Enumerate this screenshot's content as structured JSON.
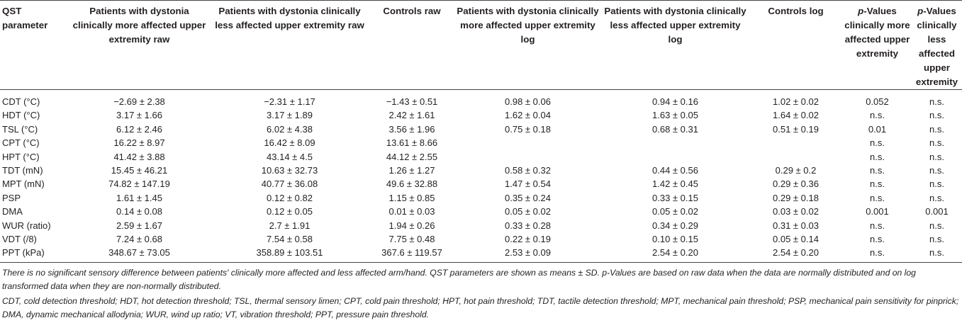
{
  "table": {
    "headers": [
      "QST parameter",
      "Patients with dystonia clinically more affected upper extremity raw",
      "Patients with dystonia clinically less affected upper extremity raw",
      "Controls raw",
      "Patients with dystonia clinically more affected upper extremity log",
      "Patients with dystonia clinically less affected upper extremity log",
      "Controls log",
      "-Values clinically more affected upper extremity",
      "-Values clinically less affected upper extremity"
    ],
    "p_prefix": "p",
    "rows": [
      [
        "CDT (°C)",
        "−2.69 ± 2.38",
        "−2.31 ± 1.17",
        "−1.43 ± 0.51",
        "0.98 ± 0.06",
        "0.94 ± 0.16",
        "1.02 ± 0.02",
        "0.052",
        "n.s."
      ],
      [
        "HDT (°C)",
        "3.17 ± 1.66",
        "3.17 ± 1.89",
        "2.42 ± 1.61",
        "1.62 ± 0.04",
        "1.63 ± 0.05",
        "1.64 ± 0.02",
        "n.s.",
        "n.s."
      ],
      [
        "TSL (°C)",
        "6.12 ± 2.46",
        "6.02 ± 4.38",
        "3.56 ± 1.96",
        "0.75 ± 0.18",
        "0.68 ± 0.31",
        "0.51 ± 0.19",
        "0.01",
        "n.s."
      ],
      [
        "CPT (°C)",
        "16.22 ± 8.97",
        "16.42 ± 8.09",
        "13.61 ± 8.66",
        "",
        "",
        "",
        "n.s.",
        "n.s."
      ],
      [
        "HPT (°C)",
        "41.42 ± 3.88",
        "43.14 ± 4.5",
        "44.12 ± 2.55",
        "",
        "",
        "",
        "n.s.",
        "n.s."
      ],
      [
        "TDT (mN)",
        "15.45 ± 46.21",
        "10.63 ± 32.73",
        "1.26 ± 1.27",
        "0.58 ± 0.32",
        "0.44 ± 0.56",
        "0.29 ± 0.2",
        "n.s.",
        "n.s."
      ],
      [
        "MPT (mN)",
        "74.82 ± 147.19",
        "40.77 ± 36.08",
        "49.6 ± 32.88",
        "1.47 ± 0.54",
        "1.42 ± 0.45",
        "0.29 ± 0.36",
        "n.s.",
        "n.s."
      ],
      [
        "PSP",
        "1.61 ± 1.45",
        "0.12 ± 0.82",
        "1.15 ± 0.85",
        "0.35 ± 0.24",
        "0.33 ± 0.15",
        "0.29 ± 0.18",
        "n.s.",
        "n.s."
      ],
      [
        "DMA",
        "0.14 ± 0.08",
        "0.12 ± 0.05",
        "0.01 ± 0.03",
        "0.05 ± 0.02",
        "0.05 ± 0.02",
        "0.03 ± 0.02",
        "0.001",
        "0.001"
      ],
      [
        "WUR (ratio)",
        "2.59 ± 1.67",
        "2.7 ± 1.91",
        "1.94 ± 0.26",
        "0.33 ± 0.28",
        "0.34 ± 0.29",
        "0.31 ± 0.03",
        "n.s.",
        "n.s."
      ],
      [
        "VDT (/8)",
        "7.24 ± 0.68",
        "7.54 ± 0.58",
        "7.75 ± 0.48",
        "0.22 ± 0.19",
        "0.10 ± 0.15",
        "0.05 ± 0.14",
        "n.s.",
        "n.s."
      ],
      [
        "PPT (kPa)",
        "348.67 ± 73.05",
        "358.89 ± 103.51",
        "367.6 ± 119.57",
        "2.53 ± 0.09",
        "2.54 ± 0.20",
        "2.54 ± 0.20",
        "n.s.",
        "n.s."
      ]
    ]
  },
  "notes": [
    "There is no significant sensory difference between patients' clinically more affected and less affected arm/hand. QST parameters are shown as means ± SD. p-Values are based on raw data when the data are normally distributed and on log transformed data when they are non-normally distributed.",
    "CDT, cold detection threshold; HDT, hot detection threshold; TSL, thermal sensory limen; CPT, cold pain threshold; HPT, hot pain threshold; TDT, tactile detection threshold; MPT, mechanical pain threshold; PSP, mechanical pain sensitivity for pinprick; DMA, dynamic mechanical allodynia; WUR, wind up ratio; VT, vibration threshold; PPT, pressure pain threshold."
  ]
}
